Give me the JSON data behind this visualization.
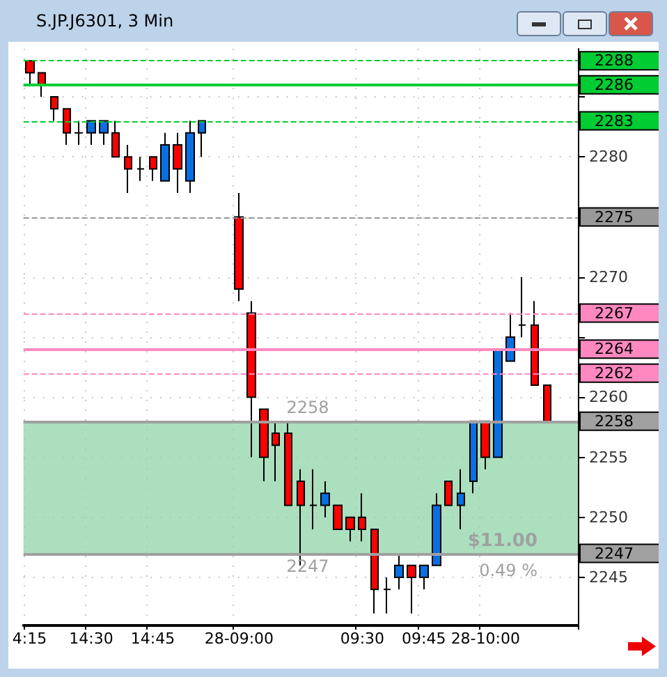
{
  "chart_data": {
    "type": "candlestick",
    "title": "S.JP.J6301, 3 Min",
    "categories": [
      "4:15",
      null,
      null,
      null,
      null,
      "14:30",
      null,
      null,
      null,
      null,
      "14:45",
      null,
      null,
      null,
      null,
      null,
      null,
      "28-09:00",
      null,
      null,
      null,
      null,
      null,
      null,
      null,
      null,
      null,
      "09:30",
      null,
      null,
      null,
      null,
      "09:45",
      null,
      null,
      null,
      null,
      "28-10:00",
      null,
      null,
      null,
      null,
      null,
      null,
      null
    ],
    "ohlc": [
      [
        2288,
        2288,
        2286,
        2287
      ],
      [
        2287,
        2287,
        2285,
        2286
      ],
      [
        2285,
        2285,
        2283,
        2284
      ],
      [
        2284,
        2284,
        2281,
        2282
      ],
      [
        2282,
        2283,
        2281,
        2282
      ],
      [
        2282,
        2283,
        2281,
        2283
      ],
      [
        2282,
        2283,
        2281,
        2283
      ],
      [
        2282,
        2283,
        2280,
        2280
      ],
      [
        2280,
        2281,
        2277,
        2279
      ],
      [
        2279,
        2280,
        2278,
        2279
      ],
      [
        2280,
        2280,
        2278,
        2279
      ],
      [
        2278,
        2282,
        2278,
        2281
      ],
      [
        2281,
        2282,
        2277,
        2279
      ],
      [
        2278,
        2283,
        2277,
        2282
      ],
      [
        2282,
        2283,
        2280,
        2283
      ],
      null,
      null,
      [
        2275,
        2277,
        2268,
        2269
      ],
      [
        2267,
        2268,
        2255,
        2260
      ],
      [
        2259,
        2259,
        2253,
        2255
      ],
      [
        2257,
        2258,
        2253,
        2256
      ],
      [
        2257,
        2258,
        2251,
        2251
      ],
      [
        2253,
        2254,
        2246,
        2251
      ],
      [
        2251,
        2254,
        2249,
        2251
      ],
      [
        2251,
        2253,
        2250,
        2252
      ],
      [
        2251,
        2251,
        2249,
        2249
      ],
      [
        2250,
        2250,
        2248,
        2249
      ],
      [
        2250,
        2252,
        2248,
        2249
      ],
      [
        2249,
        2249,
        2242,
        2244
      ],
      [
        2244,
        2245,
        2242,
        2244
      ],
      [
        2245,
        2247,
        2244,
        2246
      ],
      [
        2246,
        2246,
        2242,
        2245
      ],
      [
        2245,
        2246,
        2244,
        2246
      ],
      [
        2246,
        2252,
        2246,
        2251
      ],
      [
        2253,
        2253,
        2251,
        2251
      ],
      [
        2251,
        2254,
        2249,
        2252
      ],
      [
        2253,
        2258,
        2252,
        2258
      ],
      [
        2258,
        2258,
        2254,
        2255
      ],
      [
        2255,
        2264,
        2255,
        2264
      ],
      [
        2263,
        2267,
        2263,
        2265
      ],
      [
        2266,
        2270,
        2265,
        2266
      ],
      [
        2266,
        2268,
        2261,
        2261
      ],
      [
        2261,
        2261,
        2258,
        2258
      ],
      null,
      null
    ],
    "ylim": [
      2241,
      2289
    ],
    "yticks": [
      2245,
      2250,
      2255,
      2260,
      {
        "value": 2265,
        "label": null
      },
      2270,
      {
        "value": 2275,
        "label": null
      },
      2280,
      {
        "value": 2285,
        "label": null
      }
    ],
    "grid": "dotted",
    "ref_lines": [
      {
        "axis": "y",
        "value": 2288,
        "label": "2288",
        "color": "#00cc33",
        "line_style": "dashed"
      },
      {
        "axis": "y",
        "value": 2286,
        "label": "2286",
        "color": "#00cc33",
        "line_style": "solid"
      },
      {
        "axis": "y",
        "value": 2283,
        "label": "2283",
        "color": "#00cc33",
        "line_style": "dashed"
      },
      {
        "axis": "y",
        "value": 2275,
        "label": "2275",
        "color": "#999999",
        "line_style": "dashed"
      },
      {
        "axis": "y",
        "value": 2267,
        "label": "2267",
        "color": "#ff88c0",
        "line_style": "dashed"
      },
      {
        "axis": "y",
        "value": 2264,
        "label": "2264",
        "color": "#ff88c0",
        "line_style": "solid"
      },
      {
        "axis": "y",
        "value": 2262,
        "label": "2262",
        "color": "#ff88c0",
        "line_style": "dashed"
      },
      {
        "axis": "y",
        "value": 2258,
        "label": "2258",
        "color": "#a0a0a0",
        "line_style": "solid"
      },
      {
        "axis": "y",
        "value": 2247,
        "label": "2247",
        "color": "#a0a0a0",
        "line_style": "solid"
      }
    ],
    "bands": [
      {
        "axis": "y",
        "from": 2247,
        "to": 2258,
        "color": "#8fd4a8"
      }
    ],
    "annotations": [
      {
        "text": "2258",
        "y": 2258
      },
      {
        "text": "2247",
        "y": 2247
      },
      {
        "text": "$11.00",
        "y": 2247
      },
      {
        "text": "0.49 %",
        "y": 2247
      }
    ]
  }
}
